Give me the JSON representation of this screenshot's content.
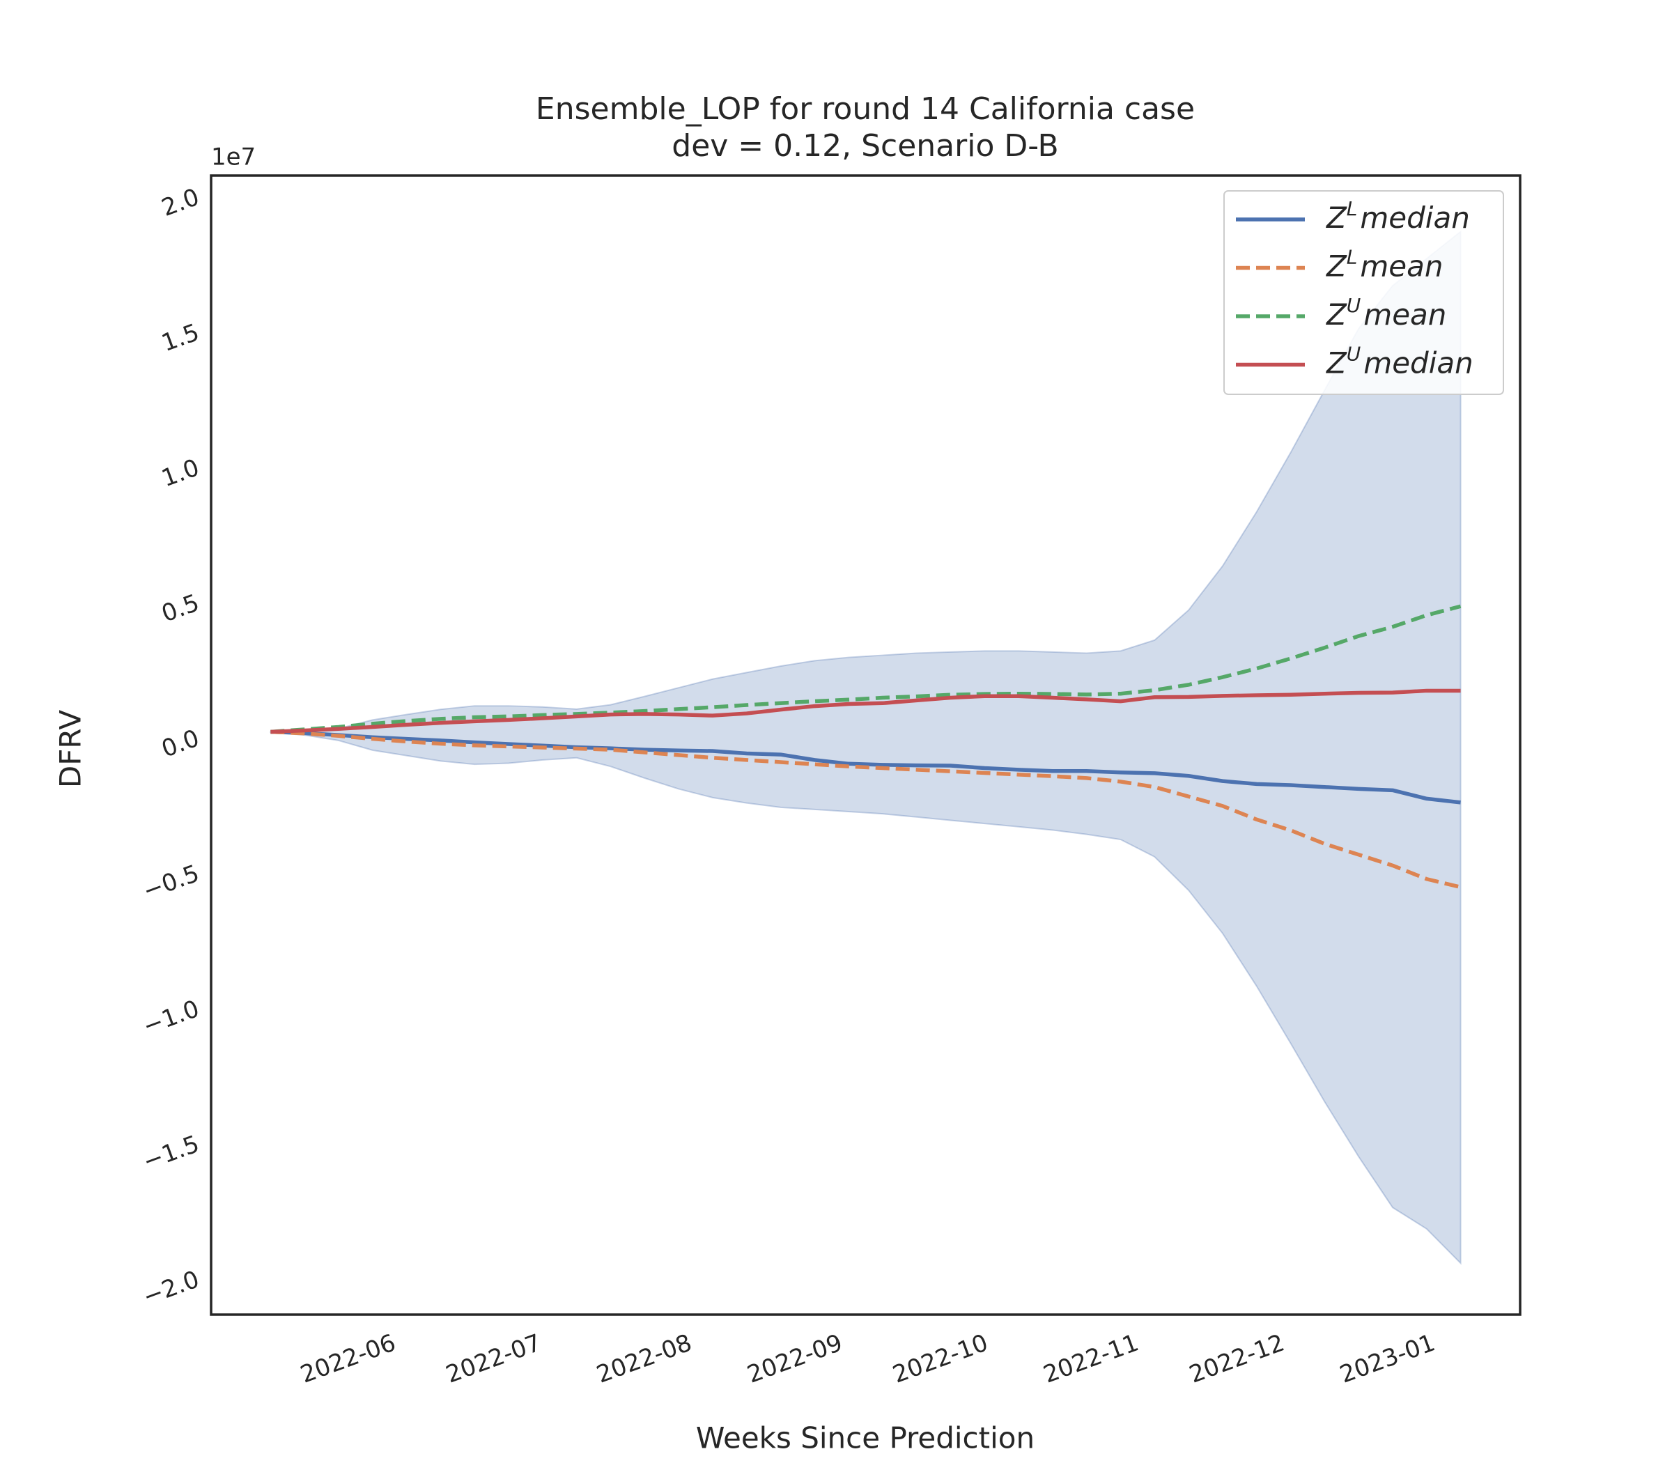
{
  "chart_data": {
    "type": "line",
    "title": "Ensemble_LOP for round 14 California case",
    "subtitle": "dev = 0.12, Scenario D-B",
    "xlabel": "Weeks Since Prediction",
    "ylabel": "DFRV",
    "y_offset_label": "1e7",
    "x": [
      0,
      1,
      2,
      3,
      4,
      5,
      6,
      7,
      8,
      9,
      10,
      11,
      12,
      13,
      14,
      15,
      16,
      17,
      18,
      19,
      20,
      21,
      22,
      23,
      24,
      25,
      26,
      27,
      28,
      29,
      30,
      31,
      32,
      33,
      34,
      35
    ],
    "xlim": [
      -1.75,
      36.75
    ],
    "xticks": [
      {
        "value": 2.29,
        "label": "2022-06"
      },
      {
        "value": 6.57,
        "label": "2022-07"
      },
      {
        "value": 11.0,
        "label": "2022-08"
      },
      {
        "value": 15.43,
        "label": "2022-09"
      },
      {
        "value": 19.71,
        "label": "2022-10"
      },
      {
        "value": 24.14,
        "label": "2022-11"
      },
      {
        "value": 28.43,
        "label": "2022-12"
      },
      {
        "value": 32.86,
        "label": "2023-01"
      }
    ],
    "ylim": [
      -21300000,
      20800000
    ],
    "yticks": [
      {
        "value": -20000000,
        "label": "−2.0"
      },
      {
        "value": -15000000,
        "label": "−1.5"
      },
      {
        "value": -10000000,
        "label": "−1.0"
      },
      {
        "value": -5000000,
        "label": "−0.5"
      },
      {
        "value": 0,
        "label": "0.0"
      },
      {
        "value": 5000000,
        "label": "0.5"
      },
      {
        "value": 10000000,
        "label": "1.0"
      },
      {
        "value": 15000000,
        "label": "1.5"
      },
      {
        "value": 20000000,
        "label": "2.0"
      }
    ],
    "grid": false,
    "legend": "upper right",
    "band": {
      "color": "#4c72b0",
      "upper": [
        240000,
        280000,
        360000,
        680000,
        880000,
        1070000,
        1200000,
        1200000,
        1160000,
        1080000,
        1240000,
        1550000,
        1870000,
        2190000,
        2430000,
        2670000,
        2870000,
        2990000,
        3070000,
        3150000,
        3190000,
        3230000,
        3230000,
        3190000,
        3150000,
        3230000,
        3630000,
        4740000,
        6370000,
        8370000,
        10560000,
        12870000,
        15140000,
        16730000,
        17730000,
        18730000
      ],
      "lower": [
        220000,
        120000,
        -80000,
        -440000,
        -640000,
        -840000,
        -960000,
        -920000,
        -800000,
        -720000,
        -1040000,
        -1470000,
        -1870000,
        -2190000,
        -2390000,
        -2550000,
        -2630000,
        -2710000,
        -2790000,
        -2910000,
        -3030000,
        -3150000,
        -3270000,
        -3390000,
        -3550000,
        -3740000,
        -4380000,
        -5620000,
        -7210000,
        -9160000,
        -11270000,
        -13430000,
        -15460000,
        -17340000,
        -18130000,
        -19400000
      ]
    },
    "series": [
      {
        "name": "ZLmedian",
        "color": "#4c72b0",
        "dashed": false,
        "values": [
          240000,
          190000,
          120000,
          40000,
          -20000,
          -80000,
          -150000,
          -210000,
          -270000,
          -330000,
          -370000,
          -420000,
          -450000,
          -470000,
          -560000,
          -600000,
          -800000,
          -940000,
          -980000,
          -1000000,
          -1010000,
          -1100000,
          -1160000,
          -1210000,
          -1210000,
          -1260000,
          -1290000,
          -1390000,
          -1580000,
          -1690000,
          -1730000,
          -1800000,
          -1870000,
          -1920000,
          -2230000,
          -2370000
        ]
      },
      {
        "name": "ZLmean",
        "color": "#dd8452",
        "dashed": true,
        "values": [
          240000,
          180000,
          90000,
          -20000,
          -120000,
          -200000,
          -260000,
          -300000,
          -340000,
          -380000,
          -420000,
          -520000,
          -620000,
          -720000,
          -800000,
          -880000,
          -960000,
          -1040000,
          -1100000,
          -1160000,
          -1220000,
          -1280000,
          -1340000,
          -1400000,
          -1470000,
          -1600000,
          -1800000,
          -2150000,
          -2500000,
          -3000000,
          -3400000,
          -3900000,
          -4300000,
          -4700000,
          -5200000,
          -5500000
        ]
      },
      {
        "name": "ZUmean",
        "color": "#55a868",
        "dashed": true,
        "values": [
          240000,
          330000,
          420000,
          540000,
          640000,
          720000,
          780000,
          810000,
          860000,
          900000,
          950000,
          1010000,
          1080000,
          1150000,
          1230000,
          1300000,
          1370000,
          1430000,
          1500000,
          1550000,
          1610000,
          1640000,
          1650000,
          1640000,
          1620000,
          1650000,
          1780000,
          1980000,
          2260000,
          2580000,
          2950000,
          3350000,
          3780000,
          4120000,
          4550000,
          4880000
        ]
      },
      {
        "name": "ZUmedian",
        "color": "#c44e52",
        "dashed": false,
        "values": [
          240000,
          290000,
          350000,
          420000,
          500000,
          570000,
          630000,
          680000,
          740000,
          810000,
          880000,
          900000,
          880000,
          840000,
          920000,
          1060000,
          1190000,
          1270000,
          1300000,
          1400000,
          1500000,
          1560000,
          1560000,
          1500000,
          1440000,
          1370000,
          1520000,
          1530000,
          1570000,
          1590000,
          1610000,
          1650000,
          1680000,
          1690000,
          1760000,
          1760000
        ]
      }
    ]
  }
}
